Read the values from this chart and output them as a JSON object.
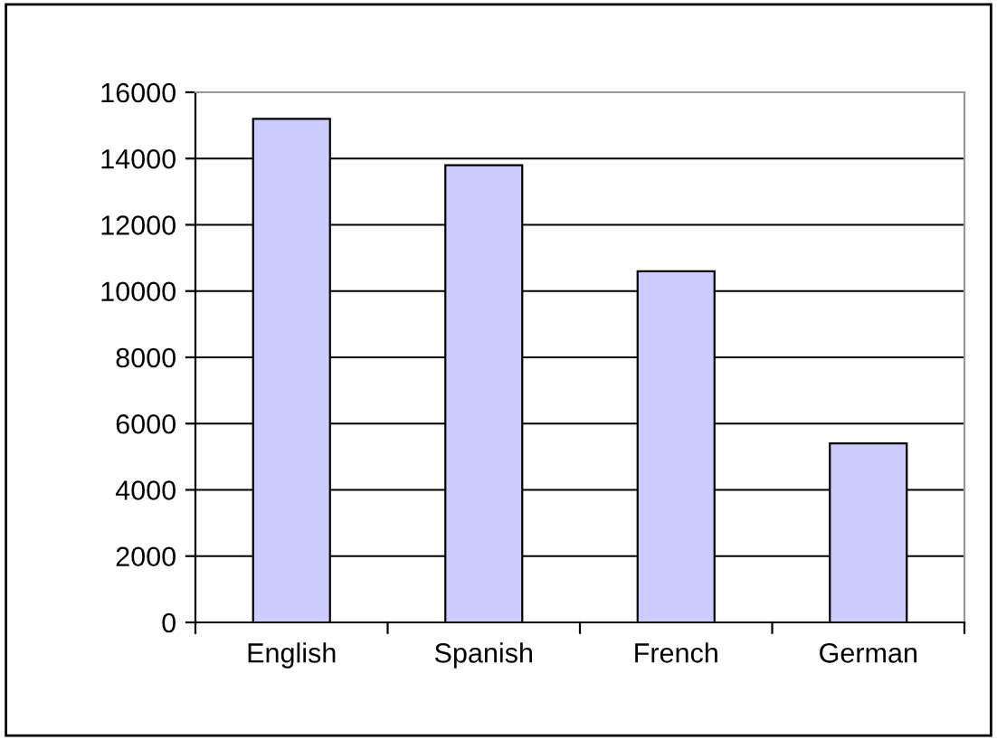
{
  "chart_data": {
    "type": "bar",
    "categories": [
      "English",
      "Spanish",
      "French",
      "German"
    ],
    "values": [
      15200,
      13800,
      10600,
      5400
    ],
    "color": "#ccccff",
    "ylim": [
      0,
      16000
    ],
    "yticks": [
      0,
      2000,
      4000,
      6000,
      8000,
      10000,
      12000,
      14000,
      16000
    ],
    "grid": "y",
    "legend": false
  }
}
